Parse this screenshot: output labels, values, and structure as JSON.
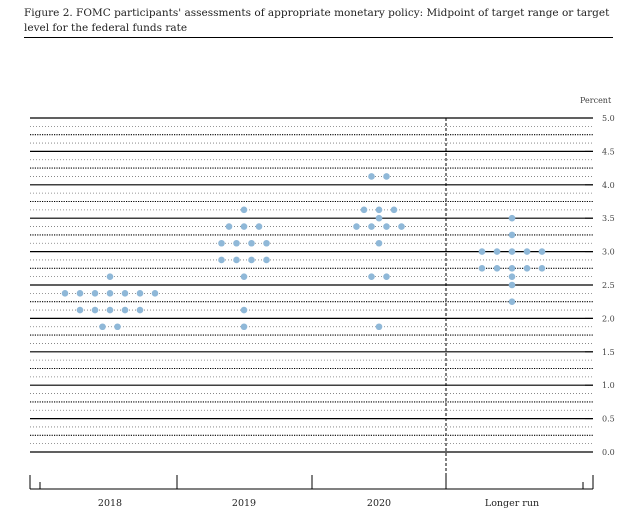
{
  "figure": {
    "title": "Figure 2. FOMC participants' assessments of appropriate monetary policy: Midpoint of target range or target level for the federal funds rate"
  },
  "chart_data": {
    "type": "scatter",
    "ylabel": "Percent",
    "ylim": [
      0,
      5
    ],
    "y_ticks": [
      "0.0",
      "0.5",
      "1.0",
      "1.5",
      "2.0",
      "2.5",
      "3.0",
      "3.5",
      "4.0",
      "4.5",
      "5.0"
    ],
    "categories": [
      "2018",
      "2019",
      "2020",
      "Longer run"
    ],
    "dot_color": "#8fb8d8",
    "series": [
      {
        "category": "2018",
        "points": [
          {
            "y": 1.875,
            "count": 2
          },
          {
            "y": 2.125,
            "count": 5
          },
          {
            "y": 2.375,
            "count": 7
          },
          {
            "y": 2.625,
            "count": 1
          }
        ]
      },
      {
        "category": "2019",
        "points": [
          {
            "y": 1.875,
            "count": 1
          },
          {
            "y": 2.125,
            "count": 1
          },
          {
            "y": 2.625,
            "count": 1
          },
          {
            "y": 2.875,
            "count": 4
          },
          {
            "y": 3.125,
            "count": 4
          },
          {
            "y": 3.375,
            "count": 3
          },
          {
            "y": 3.625,
            "count": 1
          }
        ]
      },
      {
        "category": "2020",
        "points": [
          {
            "y": 1.875,
            "count": 1
          },
          {
            "y": 2.625,
            "count": 2
          },
          {
            "y": 3.125,
            "count": 1
          },
          {
            "y": 3.375,
            "count": 4
          },
          {
            "y": 3.5,
            "count": 1
          },
          {
            "y": 3.625,
            "count": 3
          },
          {
            "y": 4.125,
            "count": 2
          }
        ]
      },
      {
        "category": "Longer run",
        "points": [
          {
            "y": 2.25,
            "count": 1
          },
          {
            "y": 2.5,
            "count": 1
          },
          {
            "y": 2.625,
            "count": 1
          },
          {
            "y": 2.75,
            "count": 5
          },
          {
            "y": 3.0,
            "count": 5
          },
          {
            "y": 3.25,
            "count": 1
          },
          {
            "y": 3.5,
            "count": 1
          }
        ]
      }
    ],
    "grid": true,
    "longer_run_separator": "dashed vertical line"
  }
}
